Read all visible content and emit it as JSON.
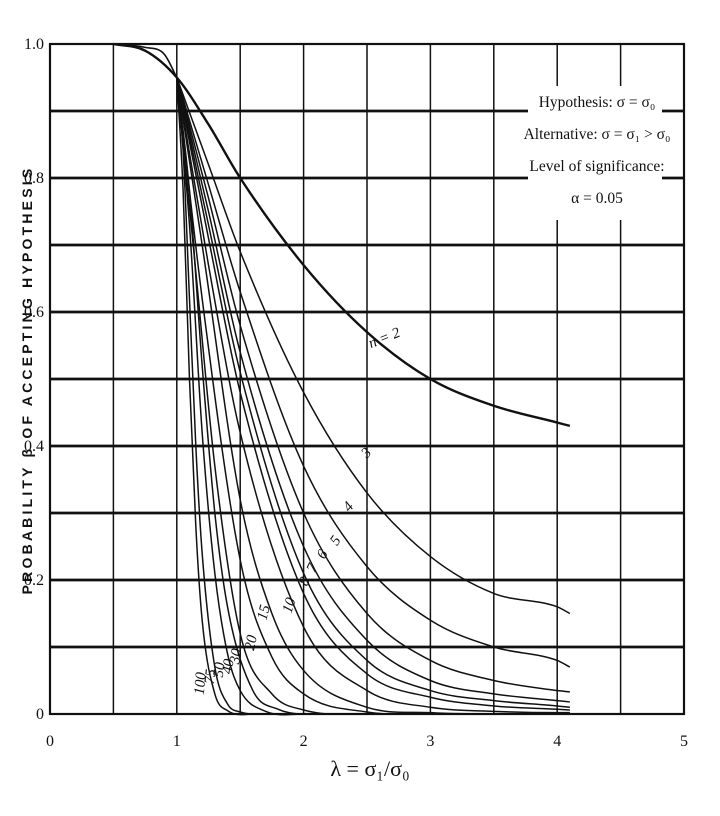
{
  "chart_data": {
    "type": "line",
    "title": "",
    "xlabel": "λ = σ₁/σ₀",
    "ylabel": "PROBABILITY β OF ACCEPTING HYPOTHESIS",
    "xlim": [
      0,
      5
    ],
    "ylim": [
      0,
      1.0
    ],
    "x_ticks": [
      "0",
      "1",
      "2",
      "3",
      "4",
      "5"
    ],
    "y_ticks": [
      "0",
      "0.2",
      "0.4",
      "0.6",
      "0.8",
      "1.0"
    ],
    "grid": true,
    "annotation": [
      "Hypothesis: σ = σ₀",
      "Alternative: σ = σ₁ > σ₀",
      "Level of significance:",
      "α = 0.05"
    ],
    "series": [
      {
        "name": "n = 2",
        "x": [
          0.5,
          0.75,
          1.0,
          1.25,
          1.5,
          2.0,
          2.5,
          3.0,
          3.5,
          4.0,
          4.1
        ],
        "y": [
          1.0,
          0.99,
          0.95,
          0.88,
          0.8,
          0.67,
          0.57,
          0.5,
          0.46,
          0.435,
          0.43
        ]
      },
      {
        "name": "3",
        "x": [
          1.0,
          1.25,
          1.5,
          2.0,
          2.5,
          3.0,
          3.5,
          4.0,
          4.1
        ],
        "y": [
          0.95,
          0.82,
          0.69,
          0.48,
          0.33,
          0.235,
          0.18,
          0.16,
          0.15
        ]
      },
      {
        "name": "4",
        "x": [
          1.0,
          1.25,
          1.5,
          2.0,
          2.5,
          3.0,
          3.5,
          4.0,
          4.1
        ],
        "y": [
          0.95,
          0.79,
          0.63,
          0.37,
          0.22,
          0.14,
          0.1,
          0.08,
          0.07
        ]
      },
      {
        "name": "5",
        "x": [
          1.0,
          1.25,
          1.5,
          2.0,
          2.5,
          3.0,
          3.5,
          4.0,
          4.1
        ],
        "y": [
          0.95,
          0.77,
          0.58,
          0.3,
          0.15,
          0.08,
          0.05,
          0.035,
          0.033
        ]
      },
      {
        "name": "6",
        "x": [
          1.0,
          1.25,
          1.5,
          2.0,
          2.5,
          3.0,
          3.5,
          4.0,
          4.1
        ],
        "y": [
          0.95,
          0.75,
          0.54,
          0.25,
          0.11,
          0.05,
          0.03,
          0.02,
          0.018
        ]
      },
      {
        "name": "7",
        "x": [
          1.0,
          1.25,
          1.5,
          2.0,
          2.5,
          3.0,
          3.5,
          4.0,
          4.1
        ],
        "y": [
          0.95,
          0.73,
          0.51,
          0.21,
          0.08,
          0.035,
          0.02,
          0.012,
          0.01
        ]
      },
      {
        "name": "8",
        "x": [
          1.0,
          1.25,
          1.5,
          2.0,
          2.5,
          3.0,
          3.5,
          4.0,
          4.1
        ],
        "y": [
          0.95,
          0.71,
          0.48,
          0.18,
          0.06,
          0.025,
          0.012,
          0.007,
          0.006
        ]
      },
      {
        "name": "10",
        "x": [
          1.0,
          1.25,
          1.5,
          2.0,
          2.5,
          3.0,
          3.5,
          4.0,
          4.1
        ],
        "y": [
          0.95,
          0.67,
          0.42,
          0.13,
          0.035,
          0.01,
          0.004,
          0.002,
          0.002
        ]
      },
      {
        "name": "15",
        "x": [
          1.0,
          1.2,
          1.5,
          1.75,
          2.0,
          2.5,
          3.0,
          3.5,
          4.1
        ],
        "y": [
          0.95,
          0.7,
          0.32,
          0.15,
          0.065,
          0.01,
          0.002,
          0.0,
          0.0
        ]
      },
      {
        "name": "20",
        "x": [
          1.0,
          1.2,
          1.5,
          1.75,
          2.0,
          2.5,
          3.0,
          4.1
        ],
        "y": [
          0.95,
          0.62,
          0.23,
          0.085,
          0.03,
          0.003,
          0.0,
          0.0
        ]
      },
      {
        "name": "30",
        "x": [
          1.0,
          1.15,
          1.3,
          1.5,
          1.75,
          2.0,
          2.5,
          4.1
        ],
        "y": [
          0.95,
          0.66,
          0.37,
          0.12,
          0.03,
          0.006,
          0.0,
          0.0
        ]
      },
      {
        "name": "40",
        "x": [
          1.0,
          1.1,
          1.2,
          1.3,
          1.4,
          1.6,
          1.8,
          2.0,
          4.1
        ],
        "y": [
          0.95,
          0.78,
          0.52,
          0.3,
          0.16,
          0.035,
          0.007,
          0.0,
          0.0
        ]
      },
      {
        "name": "50",
        "x": [
          1.0,
          1.1,
          1.2,
          1.3,
          1.4,
          1.5,
          1.7,
          2.0,
          4.1
        ],
        "y": [
          0.95,
          0.73,
          0.42,
          0.21,
          0.09,
          0.035,
          0.004,
          0.0,
          0.0
        ]
      },
      {
        "name": "75",
        "x": [
          1.0,
          1.05,
          1.1,
          1.15,
          1.2,
          1.3,
          1.4,
          1.5,
          1.7,
          4.1
        ],
        "y": [
          0.95,
          0.84,
          0.62,
          0.4,
          0.24,
          0.07,
          0.015,
          0.003,
          0.0,
          0.0
        ]
      },
      {
        "name": "100",
        "x": [
          1.0,
          1.05,
          1.1,
          1.15,
          1.2,
          1.3,
          1.4,
          1.6,
          4.1
        ],
        "y": [
          0.95,
          0.78,
          0.5,
          0.28,
          0.14,
          0.03,
          0.005,
          0.0,
          0.0
        ]
      }
    ],
    "one_sided_curve": {
      "x": [
        0.5,
        0.75,
        0.9,
        1.0
      ],
      "y": [
        1.0,
        0.995,
        0.985,
        0.95
      ]
    }
  }
}
